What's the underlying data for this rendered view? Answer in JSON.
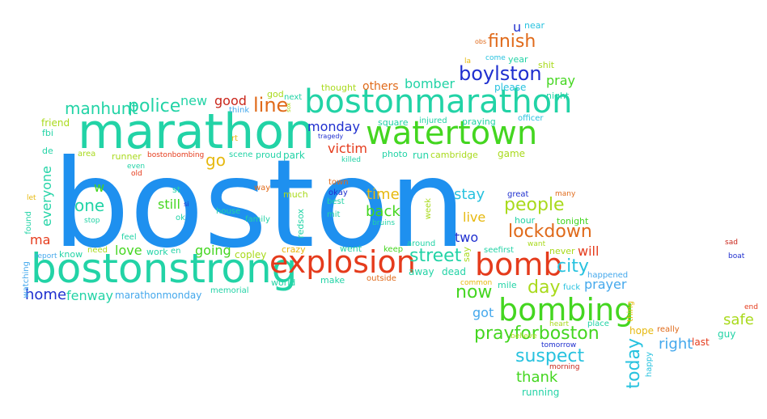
{
  "title": "Boston Marathon word cloud",
  "colors": {
    "blue": "#1e90ef",
    "teal": "#22d3a6",
    "green": "#44d620",
    "red": "#e53b1c",
    "orange": "#e06a1a",
    "gold": "#e6b80e",
    "navy": "#1f2fcf",
    "cyan": "#27c2df",
    "lime": "#a9da1c",
    "darkred": "#c9261b",
    "sky": "#44a8ec"
  },
  "words": [
    "boston",
    "marathon",
    "bostonstrong",
    "bostonmarathon",
    "watertown",
    "explosion",
    "bomb",
    "bombing",
    "finish",
    "boylston",
    "pray",
    "bomber",
    "others",
    "thought",
    "manhunt",
    "police",
    "new",
    "good",
    "line",
    "monday",
    "go",
    "victim",
    "one",
    "w",
    "still",
    "st",
    "time",
    "back",
    "stay",
    "people",
    "lockdown",
    "street",
    "city",
    "two",
    "day",
    "now",
    "prayforboston",
    "suspect",
    "thank",
    "today",
    "right",
    "prayer",
    "safe",
    "ma",
    "everyone",
    "home",
    "fenway",
    "marathonmonday",
    "love",
    "going",
    "copley",
    "will",
    "got",
    "near",
    "u",
    "obs",
    "la",
    "come",
    "year",
    "shit",
    "please",
    "night",
    "officer",
    "game",
    "tonight",
    "hour",
    "never",
    "many",
    "great",
    "want",
    "happened",
    "fuck",
    "mile",
    "common",
    "place",
    "heart",
    "believe",
    "tomorrow",
    "morning",
    "running",
    "hope",
    "really",
    "thing",
    "happy",
    "last",
    "guy",
    "end",
    "sad",
    "boat",
    "friend",
    "fbi",
    "de",
    "found",
    "watching",
    "report",
    "know",
    "need",
    "feel",
    "work",
    "en",
    "old",
    "even",
    "area",
    "runner",
    "bostonbombing",
    "scene",
    "proud",
    "park",
    "photo",
    "run",
    "cambridge",
    "square",
    "injured",
    "praying",
    "tragedy",
    "killed",
    "think",
    "god",
    "next",
    "sox",
    "rt",
    "family",
    "house",
    "ok",
    "let",
    "stop",
    "crazy",
    "much",
    "redsox",
    "went",
    "keep",
    "around",
    "away",
    "dead",
    "say",
    "seefirst",
    "outside",
    "make",
    "world",
    "memorial",
    "town",
    "okay",
    "best",
    "mit",
    "bruins",
    "week",
    "live",
    "way",
    "si"
  ]
}
